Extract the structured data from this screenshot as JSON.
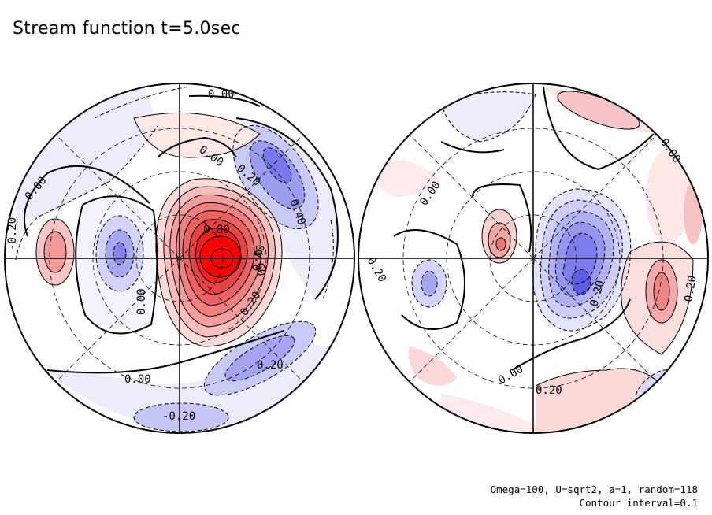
{
  "title": "Stream function t=5.0sec",
  "footer": {
    "params": "Omega=100, U=sqrt2, a=1, random=118",
    "contour_interval": "Contour interval=0.1"
  },
  "colors": {
    "positive": "#ff0000",
    "negative": "#3c3cf0",
    "background": "#ffffff",
    "line": "#000000"
  },
  "left_disk": {
    "labels": [
      "0.00",
      "0.00",
      "0.20",
      "0.40",
      "0.80",
      "0.60",
      "0.40",
      "0.20",
      "0.00",
      "0.00",
      "0.00",
      "-0.20",
      "0.20",
      "0.00",
      "-0.20"
    ]
  },
  "right_disk": {
    "labels": [
      "0.00",
      "0.00",
      "0.20",
      "0.20",
      "0.20",
      "0.00",
      "0.20"
    ]
  }
}
